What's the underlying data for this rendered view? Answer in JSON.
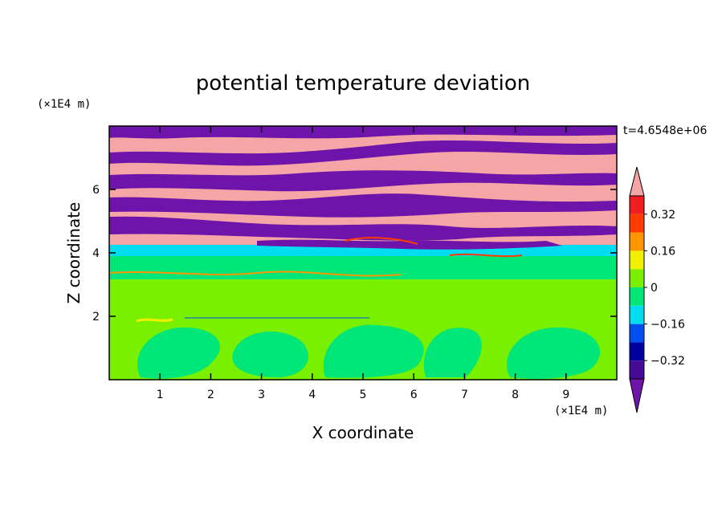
{
  "chart_data": {
    "type": "heatmap",
    "title": "potential temperature deviation",
    "xlabel": "X coordinate",
    "ylabel": "Z coordinate",
    "x_unit": "(×1E4 m)",
    "y_unit": "(×1E4 m)",
    "time_label": "t=4.6548e+06",
    "xlim": [
      0,
      10
    ],
    "ylim": [
      0,
      8
    ],
    "x_ticks": [
      "1",
      "2",
      "3",
      "4",
      "5",
      "6",
      "7",
      "8",
      "9"
    ],
    "y_ticks": [
      "2",
      "4",
      "6"
    ],
    "x_tick_values": [
      1,
      2,
      3,
      4,
      5,
      6,
      7,
      8,
      9
    ],
    "y_tick_values": [
      2,
      4,
      6
    ],
    "colorbar": {
      "levels": [
        -0.4,
        -0.32,
        -0.24,
        -0.16,
        -0.08,
        0,
        0.08,
        0.16,
        0.24,
        0.32,
        0.4
      ],
      "labels": [
        "0.32",
        "0.16",
        "0",
        "−0.16",
        "−0.32"
      ],
      "label_values": [
        0.32,
        0.16,
        0,
        -0.16,
        -0.32
      ],
      "colors": [
        "#460a96",
        "#0000a0",
        "#0050f0",
        "#00dcf0",
        "#00e678",
        "#78f000",
        "#f0f000",
        "#ff9600",
        "#ff3c00",
        "#f01e1e"
      ],
      "over_color": "#f5a5a5",
      "under_color": "#6e14aa"
    }
  }
}
